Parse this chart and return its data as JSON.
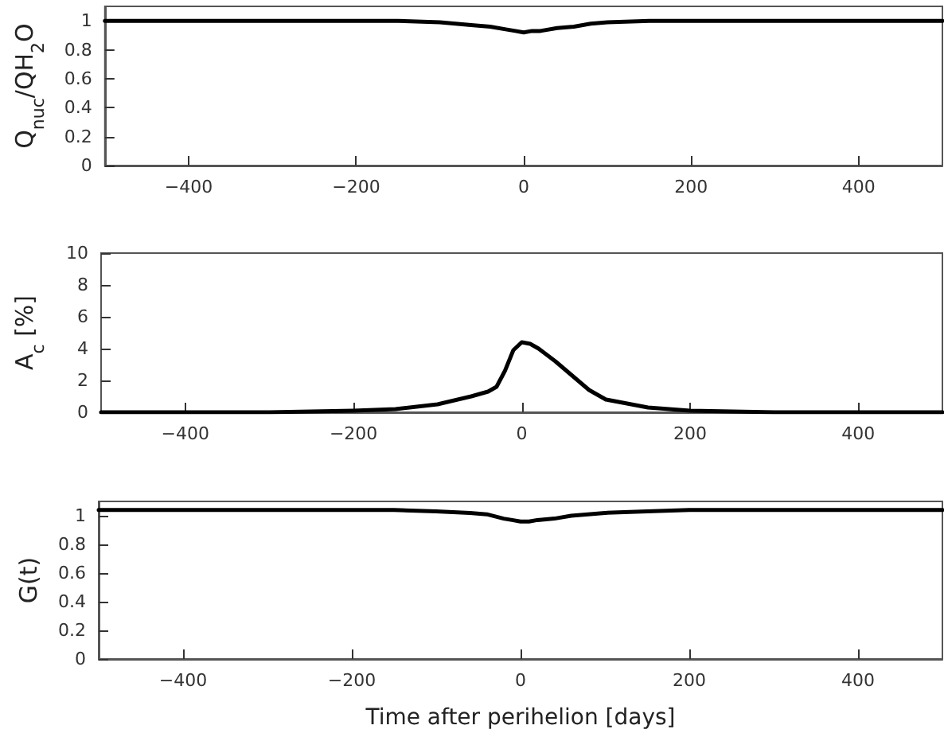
{
  "chart_data": [
    {
      "type": "line",
      "ylabel": "Q$_{nuc}$/QH$_{2}$O",
      "xlim": [
        -500,
        500
      ],
      "xticks": [
        -400,
        -200,
        0,
        200,
        400
      ],
      "ylim": [
        0,
        1.1
      ],
      "yticks": [
        0,
        0.2,
        0.4,
        0.6,
        0.8,
        1
      ],
      "marker": "none",
      "line_style": "solid",
      "series": [
        {
          "color": "#000000",
          "x": [
            -500,
            -400,
            -300,
            -200,
            -150,
            -100,
            -60,
            -40,
            -20,
            -10,
            0,
            10,
            20,
            40,
            60,
            80,
            100,
            150,
            200,
            300,
            400,
            500
          ],
          "values": [
            1,
            1,
            1,
            1,
            1,
            0.99,
            0.97,
            0.96,
            0.94,
            0.93,
            0.92,
            0.93,
            0.93,
            0.95,
            0.96,
            0.98,
            0.99,
            1,
            1,
            1,
            1,
            1
          ]
        }
      ]
    },
    {
      "type": "line",
      "ylabel": "A$_{c}$ [%]",
      "xlim": [
        -500,
        500
      ],
      "xticks": [
        -400,
        -200,
        0,
        200,
        400
      ],
      "ylim": [
        0,
        10
      ],
      "yticks": [
        0,
        2,
        4,
        6,
        8,
        10
      ],
      "marker": "none",
      "line_style": "solid",
      "series": [
        {
          "color": "#000000",
          "x": [
            -500,
            -400,
            -300,
            -200,
            -150,
            -100,
            -60,
            -40,
            -30,
            -20,
            -10,
            0,
            10,
            20,
            40,
            60,
            80,
            100,
            150,
            200,
            300,
            400,
            500
          ],
          "values": [
            0,
            0,
            0,
            0.1,
            0.2,
            0.5,
            1.0,
            1.3,
            1.6,
            2.6,
            3.9,
            4.4,
            4.3,
            4.0,
            3.2,
            2.3,
            1.4,
            0.8,
            0.3,
            0.1,
            0,
            0,
            0
          ]
        }
      ]
    },
    {
      "type": "line",
      "xlabel": "Time after perihelion [days]",
      "ylabel": "G(t)",
      "xlim": [
        -500,
        500
      ],
      "xticks": [
        -400,
        -200,
        0,
        200,
        400
      ],
      "ylim": [
        0,
        1.1
      ],
      "yticks": [
        0,
        0.2,
        0.4,
        0.6,
        0.8,
        1
      ],
      "marker": "none",
      "line_style": "solid",
      "series": [
        {
          "color": "#000000",
          "x": [
            -500,
            -400,
            -300,
            -200,
            -150,
            -100,
            -60,
            -40,
            -20,
            -10,
            0,
            10,
            20,
            40,
            60,
            80,
            100,
            150,
            200,
            300,
            400,
            500
          ],
          "values": [
            1.04,
            1.04,
            1.04,
            1.04,
            1.04,
            1.03,
            1.02,
            1.01,
            0.98,
            0.97,
            0.96,
            0.96,
            0.97,
            0.98,
            1.0,
            1.01,
            1.02,
            1.03,
            1.04,
            1.04,
            1.04,
            1.04
          ]
        }
      ]
    }
  ]
}
